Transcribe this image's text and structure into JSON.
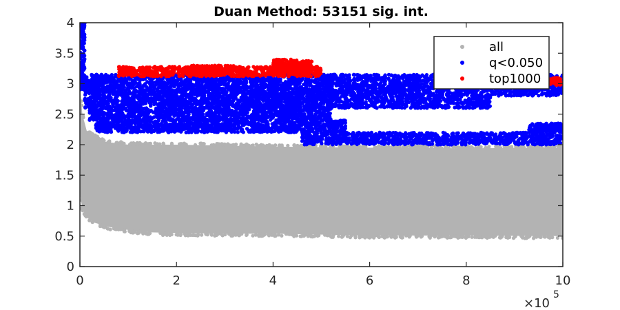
{
  "chart_data": {
    "type": "scatter",
    "title": "Duan Method: 53151 sig. int.",
    "xlabel": "",
    "ylabel": "",
    "xlim": [
      0,
      10
    ],
    "ylim": [
      0,
      4
    ],
    "x_multiplier_label": "×10",
    "x_multiplier_exponent": "5",
    "x_ticks": [
      0,
      2,
      4,
      6,
      8,
      10
    ],
    "x_tick_labels": [
      "0",
      "2",
      "4",
      "6",
      "8",
      "10"
    ],
    "y_ticks": [
      0,
      0.5,
      1,
      1.5,
      2,
      2.5,
      3,
      3.5,
      4
    ],
    "y_tick_labels": [
      "0",
      "0.5",
      "1",
      "1.5",
      "2",
      "2.5",
      "3",
      "3.5",
      "4"
    ],
    "grid": false,
    "legend_position": "top-right",
    "series": [
      {
        "name": "all",
        "color": "#b3b3b3",
        "regions": [
          {
            "x": [
              0.0,
              10.0
            ],
            "lower": [
              [
                0.0,
                1.2
              ],
              [
                0.05,
                0.95
              ],
              [
                0.15,
                0.8
              ],
              [
                0.3,
                0.72
              ],
              [
                0.6,
                0.65
              ],
              [
                1.0,
                0.6
              ],
              [
                1.5,
                0.56
              ],
              [
                2.0,
                0.55
              ],
              [
                3.0,
                0.54
              ],
              [
                4.0,
                0.54
              ],
              [
                6.0,
                0.51
              ],
              [
                8.0,
                0.51
              ],
              [
                10.0,
                0.5
              ]
            ],
            "upper": [
              [
                0.0,
                3.0
              ],
              [
                0.05,
                2.5
              ],
              [
                0.15,
                2.2
              ],
              [
                0.5,
                2.05
              ],
              [
                1.0,
                2.0
              ],
              [
                2.0,
                2.0
              ],
              [
                4.0,
                1.97
              ],
              [
                6.0,
                1.95
              ],
              [
                8.0,
                1.94
              ],
              [
                10.0,
                1.95
              ]
            ]
          }
        ]
      },
      {
        "name": "q<0.050",
        "color": "#0000ff",
        "bands": [
          {
            "x": [
              0.0,
              0.1
            ],
            "y": [
              2.9,
              4.0
            ]
          },
          {
            "x": [
              0.0,
              10.0
            ],
            "y": [
              2.95,
              3.15
            ]
          },
          {
            "x": [
              0.1,
              10.0
            ],
            "y": [
              2.8,
              2.95
            ]
          },
          {
            "x": [
              0.1,
              8.5
            ],
            "y": [
              2.6,
              2.8
            ]
          },
          {
            "x": [
              0.2,
              5.2
            ],
            "y": [
              2.4,
              2.6
            ]
          },
          {
            "x": [
              0.3,
              5.5
            ],
            "y": [
              2.2,
              2.4
            ]
          },
          {
            "x": [
              4.6,
              10.0
            ],
            "y": [
              2.0,
              2.2
            ]
          },
          {
            "x": [
              9.3,
              10.0
            ],
            "y": [
              2.2,
              2.35
            ]
          }
        ]
      },
      {
        "name": "top1000",
        "color": "#ff0000",
        "bands": [
          {
            "x": [
              0.8,
              5.0
            ],
            "y": [
              3.12,
              3.28
            ]
          },
          {
            "x": [
              2.3,
              3.2
            ],
            "y": [
              3.2,
              3.3
            ]
          },
          {
            "x": [
              4.0,
              4.8
            ],
            "y": [
              3.15,
              3.4
            ]
          },
          {
            "x": [
              9.5,
              10.0
            ],
            "y": [
              2.98,
              3.1
            ]
          }
        ]
      }
    ]
  }
}
